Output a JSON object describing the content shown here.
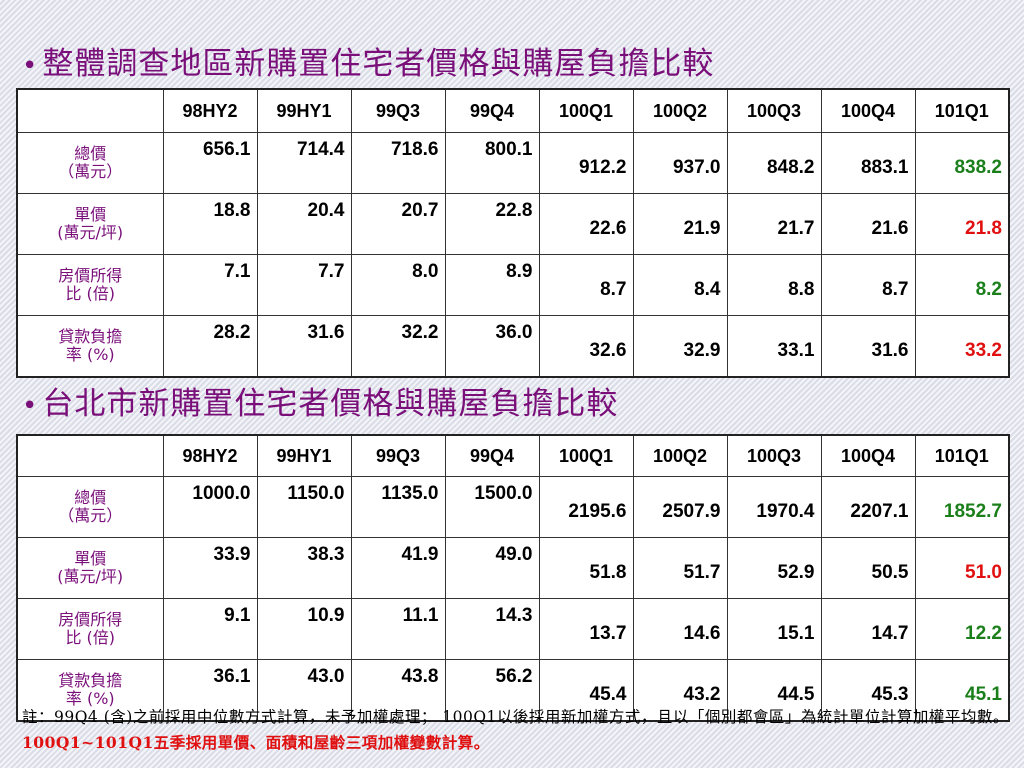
{
  "section1": {
    "bullet": "•",
    "title": "整體調查地區新購置住宅者價格與購屋負擔比較",
    "columns": [
      "98HY2",
      "99HY1",
      "99Q3",
      "99Q4",
      "100Q1",
      "100Q2",
      "100Q3",
      "100Q4",
      "101Q1"
    ],
    "rows": [
      {
        "label_line1": "總價",
        "label_line2": "（萬元）",
        "values": [
          "656.1",
          "714.4",
          "718.6",
          "800.1",
          "912.2",
          "937.0",
          "848.2",
          "883.1",
          "838.2"
        ],
        "last_color": "#1a7f1a"
      },
      {
        "label_line1": "單價",
        "label_line2": "(萬元/坪)",
        "values": [
          "18.8",
          "20.4",
          "20.7",
          "22.8",
          "22.6",
          "21.9",
          "21.7",
          "21.6",
          "21.8"
        ],
        "last_color": "#e01010"
      },
      {
        "label_line1": "房價所得",
        "label_line2": "比 (倍)",
        "values": [
          "7.1",
          "7.7",
          "8.0",
          "8.9",
          "8.7",
          "8.4",
          "8.8",
          "8.7",
          "8.2"
        ],
        "last_color": "#1a7f1a"
      },
      {
        "label_line1": "貸款負擔",
        "label_line2": "率 (%)",
        "values": [
          "28.2",
          "31.6",
          "32.2",
          "36.0",
          "32.6",
          "32.9",
          "33.1",
          "31.6",
          "33.2"
        ],
        "last_color": "#e01010"
      }
    ]
  },
  "section2": {
    "bullet": "•",
    "title": "台北市新購置住宅者價格與購屋負擔比較",
    "columns": [
      "98HY2",
      "99HY1",
      "99Q3",
      "99Q4",
      "100Q1",
      "100Q2",
      "100Q3",
      "100Q4",
      "101Q1"
    ],
    "rows": [
      {
        "label_line1": "總價",
        "label_line2": "（萬元）",
        "values": [
          "1000.0",
          "1150.0",
          "1135.0",
          "1500.0",
          "2195.6",
          "2507.9",
          "1970.4",
          "2207.1",
          "1852.7"
        ],
        "last_color": "#1a7f1a"
      },
      {
        "label_line1": "單價",
        "label_line2": "(萬元/坪)",
        "values": [
          "33.9",
          "38.3",
          "41.9",
          "49.0",
          "51.8",
          "51.7",
          "52.9",
          "50.5",
          "51.0"
        ],
        "last_color": "#e01010"
      },
      {
        "label_line1": "房價所得",
        "label_line2": "比 (倍)",
        "values": [
          "9.1",
          "10.9",
          "11.1",
          "14.3",
          "13.7",
          "14.6",
          "15.1",
          "14.7",
          "12.2"
        ],
        "last_color": "#1a7f1a"
      },
      {
        "label_line1": "貸款負擔",
        "label_line2": "率 (%)",
        "values": [
          "36.1",
          "43.0",
          "43.8",
          "56.2",
          "45.4",
          "43.2",
          "44.5",
          "45.3",
          "45.1"
        ],
        "last_color": "#1a7f1a"
      }
    ]
  },
  "note": {
    "part1": "註：99Q4 (含)之前採用中位數方式計算，未予加權處理； 100Q1以後採用新加權方式，且以「個別都會區」為統計單位計算加權平均數。",
    "part2": "100Q1~101Q1五季採用單價、面積和屋齡三項加權變數計算。"
  }
}
